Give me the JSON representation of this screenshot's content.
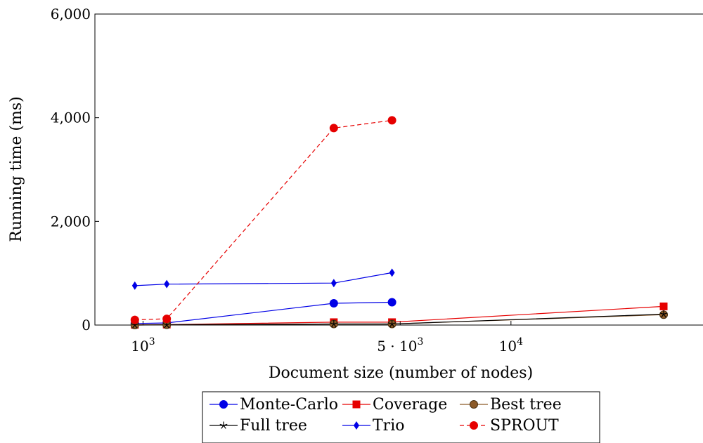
{
  "chart_data": {
    "type": "line",
    "title": "",
    "xlabel": "Document size (number of nodes)",
    "ylabel": "Running time (ms)",
    "x_scale": "log",
    "xlim": [
      740,
      34000
    ],
    "ylim": [
      0,
      6000
    ],
    "y_ticks": [
      0,
      2000,
      4000,
      6000
    ],
    "y_tick_labels": [
      "0",
      "2,000",
      "4,000",
      "6,000"
    ],
    "x_ticks": [
      {
        "value": 1000,
        "base": "10",
        "exp": "3",
        "coef": ""
      },
      {
        "value": 5000,
        "base": "10",
        "exp": "3",
        "coef": "5 · "
      },
      {
        "value": 10000,
        "base": "10",
        "exp": "4",
        "coef": ""
      }
    ],
    "grid": false,
    "legend_position": "bottom-center",
    "series": [
      {
        "name": "Monte-Carlo",
        "color": "#0000e6",
        "marker": "circle",
        "dash": "solid",
        "x": [
          950,
          1160,
          3300,
          4750
        ],
        "y": [
          30,
          40,
          420,
          440
        ]
      },
      {
        "name": "Coverage",
        "color": "#e60000",
        "marker": "square",
        "dash": "solid",
        "x": [
          950,
          1160,
          3300,
          4750,
          26000
        ],
        "y": [
          5,
          10,
          55,
          55,
          360
        ]
      },
      {
        "name": "Best tree",
        "color": "#8c5a28",
        "marker": "circle",
        "dash": "solid",
        "x": [
          950,
          1160,
          3300,
          4750,
          26000
        ],
        "y": [
          0,
          5,
          20,
          20,
          200
        ]
      },
      {
        "name": "Full tree",
        "color": "#000000",
        "marker": "star",
        "dash": "solid",
        "x": [
          950,
          1160,
          3300,
          4750,
          26000
        ],
        "y": [
          0,
          5,
          20,
          20,
          210
        ]
      },
      {
        "name": "Trio",
        "color": "#0000e6",
        "marker": "diamond",
        "dash": "solid",
        "x": [
          950,
          1160,
          3300,
          4750
        ],
        "y": [
          760,
          790,
          810,
          1010
        ]
      },
      {
        "name": "SPROUT",
        "color": "#e60000",
        "marker": "circle",
        "dash": "dashed",
        "x": [
          950,
          1160,
          3300,
          4750
        ],
        "y": [
          100,
          120,
          3800,
          3950
        ]
      }
    ]
  }
}
